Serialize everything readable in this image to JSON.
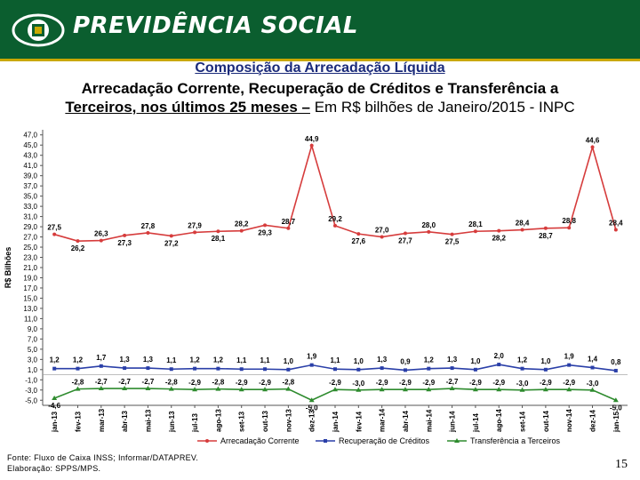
{
  "header": {
    "brand": "PREVIDÊNCIA SOCIAL"
  },
  "titles": {
    "line1": "Composição da Arrecadação Líquida",
    "line2": "Arrecadação Corrente, Recuperação de Créditos e Transferência a",
    "line3_bold": "Terceiros, nos últimos 25 meses –",
    "line3_rest": " Em R$ bilhões de Janeiro/2015 - INPC"
  },
  "chart_data": {
    "type": "line",
    "ylabel": "R$ Bilhões",
    "ylim": [
      -6.0,
      48.0
    ],
    "ytick_step": 2,
    "categories": [
      "jan-13",
      "fev-13",
      "mar-13",
      "abr-13",
      "mai-13",
      "jun-13",
      "jul-13",
      "ago-13",
      "set-13",
      "out-13",
      "nov-13",
      "dez-13",
      "jan-14",
      "fev-14",
      "mar-14",
      "abr-14",
      "mai-14",
      "jun-14",
      "jul-14",
      "ago-14",
      "set-14",
      "out-14",
      "nov-14",
      "dez-14",
      "jan-15"
    ],
    "series": [
      {
        "name": "Arrecadação Corrente",
        "color": "#d63c3c",
        "values": [
          27.5,
          26.2,
          26.3,
          27.3,
          27.8,
          27.2,
          27.9,
          28.1,
          28.2,
          29.3,
          28.7,
          44.9,
          29.2,
          27.6,
          27.0,
          27.7,
          28.0,
          27.5,
          28.1,
          28.2,
          28.4,
          28.7,
          28.8,
          44.6,
          28.4
        ],
        "labels": [
          "27,5",
          "26,2",
          "26,3",
          "27,3",
          "27,8",
          "27,2",
          "27,9",
          "28,1",
          "28,2",
          "29,3",
          "28,7",
          "44,9",
          "29,2",
          "27,6",
          "27,0",
          "27,7",
          "28,0",
          "27,5",
          "28,1",
          "28,2",
          "28,4",
          "28,7",
          "28,8",
          "44,6",
          "28,4"
        ]
      },
      {
        "name": "Recuperação de Créditos",
        "color": "#2a3fa8",
        "values": [
          1.2,
          1.2,
          1.7,
          1.3,
          1.3,
          1.1,
          1.2,
          1.2,
          1.1,
          1.1,
          1.0,
          1.9,
          1.1,
          1.0,
          1.3,
          0.9,
          1.2,
          1.3,
          1.0,
          2.0,
          1.2,
          1.0,
          1.9,
          1.4,
          0.8
        ],
        "labels": [
          "1,2",
          "1,2",
          "1,7",
          "1,3",
          "1,3",
          "1,1",
          "1,2",
          "1,2",
          "1,1",
          "1,1",
          "1,0",
          "1,9",
          "1,1",
          "1,0",
          "1,3",
          "0,9",
          "1,2",
          "1,3",
          "1,0",
          "2,0",
          "1,2",
          "1,0",
          "1,9",
          "1,4",
          "0,8"
        ]
      },
      {
        "name": "Transferência a Terceiros",
        "color": "#2e8b2e",
        "values": [
          -4.6,
          -2.8,
          -2.7,
          -2.7,
          -2.7,
          -2.8,
          -2.9,
          -2.8,
          -2.9,
          -2.9,
          -2.8,
          -5.0,
          -2.9,
          -3.0,
          -2.9,
          -2.9,
          -2.9,
          -2.7,
          -2.9,
          -2.9,
          -3.0,
          -2.9,
          -2.9,
          -3.0,
          -5.0
        ],
        "labels": [
          "-4,6",
          "-2,8",
          "-2,7",
          "-2,7",
          "-2,7",
          "-2,8",
          "-2,9",
          "-2,8",
          "-2,9",
          "-2,9",
          "-2,8",
          "-5,0",
          "-2,9",
          "-3,0",
          "-2,9",
          "-2,9",
          "-2,9",
          "-2,7",
          "-2,9",
          "-2,9",
          "-3,0",
          "-2,9",
          "-2,9",
          "-3,0",
          "-5,0"
        ]
      }
    ],
    "legend_position": "bottom"
  },
  "footer": {
    "source": "Fonte: Fluxo de Caixa INSS; Informar/DATAPREV.",
    "elaboration": "Elaboração: SPPS/MPS.",
    "page_number": "15"
  }
}
